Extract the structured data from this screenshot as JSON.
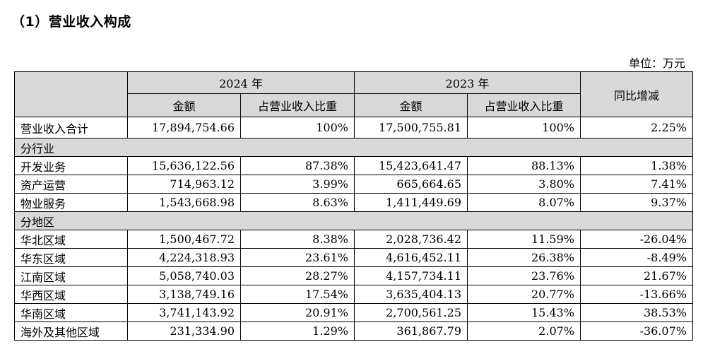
{
  "heading": "（1）营业收入构成",
  "unit": "单位：万元",
  "table": {
    "year_2024": "2024 年",
    "year_2023": "2023 年",
    "col_yoy": "同比增减",
    "col_amount": "金额",
    "col_ratio": "占营业收入比重",
    "total": [
      "营业收入合计",
      "17,894,754.66",
      "100%",
      "17,500,755.81",
      "100%",
      "2.25%"
    ],
    "section_industry": "分行业",
    "industry_rows": [
      [
        "开发业务",
        "15,636,122.56",
        "87.38%",
        "15,423,641.47",
        "88.13%",
        "1.38%"
      ],
      [
        "资产运营",
        "714,963.12",
        "3.99%",
        "665,664.65",
        "3.80%",
        "7.41%"
      ],
      [
        "物业服务",
        "1,543,668.98",
        "8.63%",
        "1,411,449.69",
        "8.07%",
        "9.37%"
      ]
    ],
    "section_region": "分地区",
    "region_rows": [
      [
        "华北区域",
        "1,500,467.72",
        "8.38%",
        "2,028,736.42",
        "11.59%",
        "-26.04%"
      ],
      [
        "华东区域",
        "4,224,318.93",
        "23.61%",
        "4,616,452.11",
        "26.38%",
        "-8.49%"
      ],
      [
        "江南区域",
        "5,058,740.03",
        "28.27%",
        "4,157,734.11",
        "23.76%",
        "21.67%"
      ],
      [
        "华西区域",
        "3,138,749.16",
        "17.54%",
        "3,635,404.13",
        "20.77%",
        "-13.66%"
      ],
      [
        "华南区域",
        "3,741,143.92",
        "20.91%",
        "2,700,561.25",
        "15.43%",
        "38.53%"
      ],
      [
        "海外及其他区域",
        "231,334.90",
        "1.29%",
        "361,867.79",
        "2.07%",
        "-36.07%"
      ]
    ]
  }
}
